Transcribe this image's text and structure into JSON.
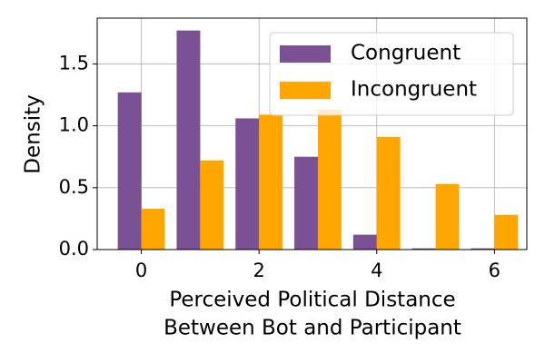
{
  "chart_data": {
    "type": "bar",
    "xlabel": [
      "Perceived Political Distance",
      "Between Bot and Participant"
    ],
    "ylabel": "Density",
    "x": [
      0,
      1,
      2,
      3,
      4,
      5,
      6
    ],
    "series": [
      {
        "name": "Congruent",
        "color": "#7a5195",
        "values": [
          1.27,
          1.77,
          1.06,
          0.75,
          0.12,
          0.01,
          0.01
        ]
      },
      {
        "name": "Incongruent",
        "color": "#ffa600",
        "values": [
          0.33,
          0.72,
          1.09,
          1.13,
          0.91,
          0.53,
          0.28
        ]
      }
    ],
    "xlim": [
      -0.75,
      6.55
    ],
    "xticks": [
      0,
      2,
      4,
      6
    ],
    "ylim": [
      0,
      1.87
    ],
    "yticks": [
      {
        "value": 0,
        "label": "0.0"
      },
      {
        "value": 0.5,
        "label": "0.5"
      },
      {
        "value": 1,
        "label": "1.0"
      },
      {
        "value": 1.5,
        "label": "1.5"
      }
    ],
    "grid": true,
    "legend": "upper-right"
  }
}
